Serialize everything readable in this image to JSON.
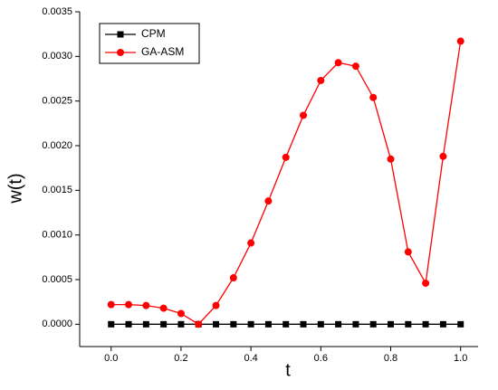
{
  "chart_data": {
    "type": "line",
    "x": [
      0.0,
      0.05,
      0.1,
      0.15,
      0.2,
      0.25,
      0.3,
      0.35,
      0.4,
      0.45,
      0.5,
      0.55,
      0.6,
      0.65,
      0.7,
      0.75,
      0.8,
      0.85,
      0.9,
      0.95,
      1.0
    ],
    "series": [
      {
        "name": "CPM",
        "color": "#000000",
        "marker": "square",
        "values": [
          0,
          0,
          0,
          0,
          0,
          0,
          0,
          0,
          0,
          0,
          0,
          0,
          0,
          0,
          0,
          0,
          0,
          0,
          0,
          0,
          0
        ]
      },
      {
        "name": "GA-ASM",
        "color": "#ff0000",
        "marker": "circle",
        "values": [
          0.00022,
          0.00022,
          0.00021,
          0.00018,
          0.00012,
          0.0,
          0.00021,
          0.00052,
          0.00091,
          0.00138,
          0.00187,
          0.00234,
          0.00273,
          0.00293,
          0.00289,
          0.00254,
          0.00185,
          0.00081,
          0.00046,
          0.00188,
          0.00317
        ]
      }
    ],
    "x_label": "t",
    "y_label": "w(t)",
    "xlim": [
      -0.09,
      1.05
    ],
    "ylim": [
      -0.00025,
      0.0035
    ],
    "xticks": [
      {
        "value": 0,
        "label": "0.0"
      },
      0.2,
      0.4,
      0.6,
      0.8,
      {
        "value": 1,
        "label": "1.0"
      }
    ],
    "yticks": [
      {
        "value": 0,
        "label": "0.0000"
      },
      {
        "value": 0.0005,
        "label": "0.0005"
      },
      {
        "value": 0.001,
        "label": "0.0010"
      },
      {
        "value": 0.0015,
        "label": "0.0015"
      },
      {
        "value": 0.002,
        "label": "0.0020"
      },
      {
        "value": 0.0025,
        "label": "0.0025"
      },
      {
        "value": 0.003,
        "label": "0.0030"
      },
      {
        "value": 0.0035,
        "label": "0.0035"
      }
    ],
    "legend": "upper left",
    "grid": false
  }
}
